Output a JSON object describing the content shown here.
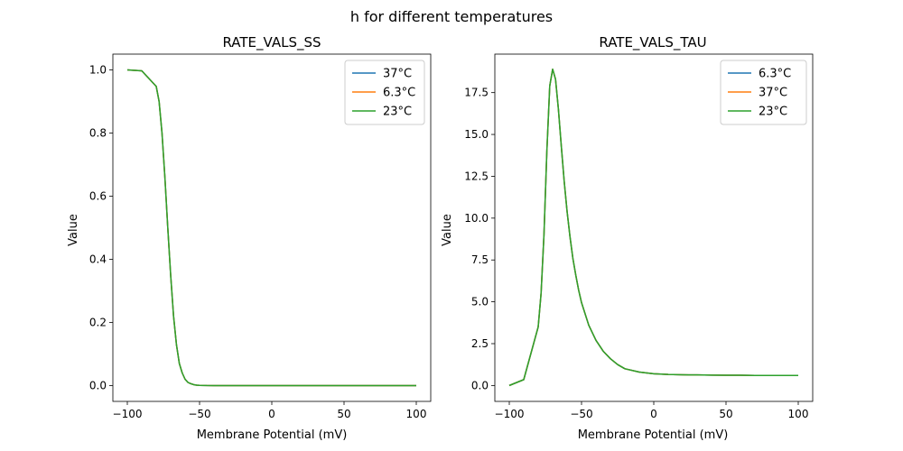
{
  "figure": {
    "suptitle": "h for different temperatures"
  },
  "chart_data": [
    {
      "type": "line",
      "title": "RATE_VALS_SS",
      "xlabel": "Membrane Potential (mV)",
      "ylabel": "Value",
      "xlim": [
        -110,
        110
      ],
      "ylim": [
        -0.05,
        1.05
      ],
      "xticks": [
        -100,
        -50,
        0,
        50,
        100
      ],
      "yticks": [
        0.0,
        0.2,
        0.4,
        0.6,
        0.8,
        1.0
      ],
      "ytick_labels": [
        "0.0",
        "0.2",
        "0.4",
        "0.6",
        "0.8",
        "1.0"
      ],
      "legend_position": "top-right",
      "x": [
        -100,
        -90,
        -80,
        -78,
        -76,
        -74,
        -72,
        -70,
        -68,
        -66,
        -64,
        -62,
        -60,
        -58,
        -56,
        -54,
        -52,
        -50,
        -45,
        -40,
        -30,
        -20,
        -10,
        0,
        10,
        20,
        30,
        40,
        50,
        60,
        70,
        80,
        90,
        100
      ],
      "series": [
        {
          "name": "37°C",
          "color": "#1f77b4",
          "values": [
            1.0,
            0.997,
            0.948,
            0.9,
            0.8,
            0.66,
            0.5,
            0.35,
            0.22,
            0.13,
            0.07,
            0.04,
            0.02,
            0.01,
            0.006,
            0.003,
            0.0015,
            0.0008,
            0.0002,
            0.0001,
            0,
            0,
            0,
            0,
            0,
            0,
            0,
            0,
            0,
            0,
            0,
            0,
            0,
            0
          ]
        },
        {
          "name": "6.3°C",
          "color": "#ff7f0e",
          "values": [
            1.0,
            0.997,
            0.948,
            0.9,
            0.8,
            0.66,
            0.5,
            0.35,
            0.22,
            0.13,
            0.07,
            0.04,
            0.02,
            0.01,
            0.006,
            0.003,
            0.0015,
            0.0008,
            0.0002,
            0.0001,
            0,
            0,
            0,
            0,
            0,
            0,
            0,
            0,
            0,
            0,
            0,
            0,
            0,
            0
          ]
        },
        {
          "name": "23°C",
          "color": "#2ca02c",
          "values": [
            1.0,
            0.997,
            0.948,
            0.9,
            0.8,
            0.66,
            0.5,
            0.35,
            0.22,
            0.13,
            0.07,
            0.04,
            0.02,
            0.01,
            0.006,
            0.003,
            0.0015,
            0.0008,
            0.0002,
            0.0001,
            0,
            0,
            0,
            0,
            0,
            0,
            0,
            0,
            0,
            0,
            0,
            0,
            0,
            0
          ]
        }
      ]
    },
    {
      "type": "line",
      "title": "RATE_VALS_TAU",
      "xlabel": "Membrane Potential (mV)",
      "ylabel": "Value",
      "xlim": [
        -110,
        110
      ],
      "ylim": [
        -0.95,
        19.8
      ],
      "xticks": [
        -100,
        -50,
        0,
        50,
        100
      ],
      "yticks": [
        0.0,
        2.5,
        5.0,
        7.5,
        10.0,
        12.5,
        15.0,
        17.5
      ],
      "ytick_labels": [
        "0.0",
        "2.5",
        "5.0",
        "7.5",
        "10.0",
        "12.5",
        "15.0",
        "17.5"
      ],
      "legend_position": "top-right",
      "x": [
        -100,
        -90,
        -80,
        -78,
        -76,
        -74,
        -72,
        -70,
        -68,
        -66,
        -64,
        -62,
        -60,
        -58,
        -56,
        -54,
        -52,
        -50,
        -45,
        -40,
        -35,
        -30,
        -25,
        -20,
        -10,
        0,
        10,
        20,
        30,
        40,
        50,
        60,
        70,
        80,
        90,
        100
      ],
      "series": [
        {
          "name": "6.3°C",
          "color": "#1f77b4",
          "values": [
            0.0,
            0.35,
            3.5,
            5.5,
            9.0,
            14.0,
            17.9,
            18.9,
            18.3,
            16.5,
            14.3,
            12.2,
            10.4,
            8.9,
            7.6,
            6.6,
            5.7,
            4.95,
            3.6,
            2.7,
            2.05,
            1.6,
            1.25,
            1.0,
            0.8,
            0.7,
            0.66,
            0.64,
            0.63,
            0.62,
            0.61,
            0.61,
            0.6,
            0.6,
            0.6,
            0.6
          ]
        },
        {
          "name": "37°C",
          "color": "#ff7f0e",
          "values": [
            0.0,
            0.35,
            3.5,
            5.5,
            9.0,
            14.0,
            17.9,
            18.9,
            18.3,
            16.5,
            14.3,
            12.2,
            10.4,
            8.9,
            7.6,
            6.6,
            5.7,
            4.95,
            3.6,
            2.7,
            2.05,
            1.6,
            1.25,
            1.0,
            0.8,
            0.7,
            0.66,
            0.64,
            0.63,
            0.62,
            0.61,
            0.61,
            0.6,
            0.6,
            0.6,
            0.6
          ]
        },
        {
          "name": "23°C",
          "color": "#2ca02c",
          "values": [
            0.0,
            0.35,
            3.5,
            5.5,
            9.0,
            14.0,
            17.9,
            18.9,
            18.3,
            16.5,
            14.3,
            12.2,
            10.4,
            8.9,
            7.6,
            6.6,
            5.7,
            4.95,
            3.6,
            2.7,
            2.05,
            1.6,
            1.25,
            1.0,
            0.8,
            0.7,
            0.66,
            0.64,
            0.63,
            0.62,
            0.61,
            0.61,
            0.6,
            0.6,
            0.6,
            0.6
          ]
        }
      ]
    }
  ]
}
